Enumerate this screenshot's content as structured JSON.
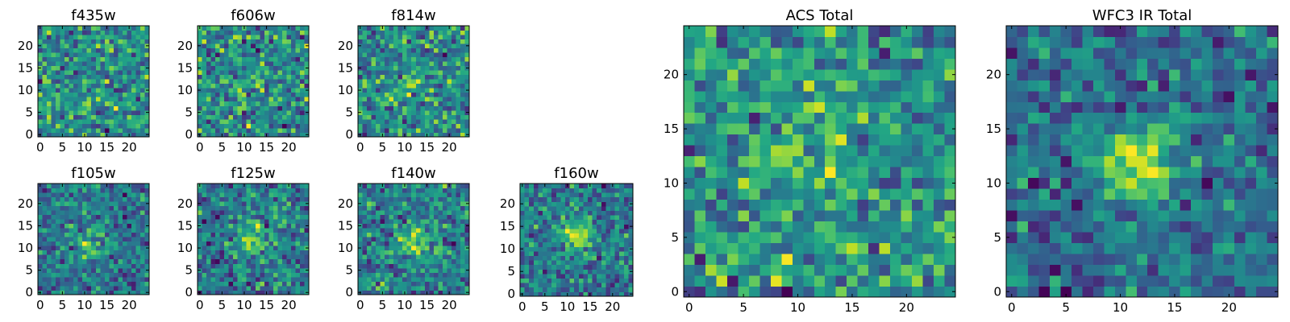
{
  "chart_data": [
    {
      "type": "heatmap",
      "title": "f435w",
      "colormap": "viridis",
      "grid_size": 25,
      "xticks": [
        0,
        5,
        10,
        15,
        20
      ],
      "yticks": [
        0,
        5,
        10,
        15,
        20
      ],
      "xlim": [
        -0.5,
        24.5
      ],
      "ylim": [
        -0.5,
        24.5
      ],
      "source_peak": null,
      "source_amplitude": 0.0,
      "noise_level": 1.0,
      "seed": 11
    },
    {
      "type": "heatmap",
      "title": "f606w",
      "colormap": "viridis",
      "grid_size": 25,
      "xticks": [
        0,
        5,
        10,
        15,
        20
      ],
      "yticks": [
        0,
        5,
        10,
        15,
        20
      ],
      "xlim": [
        -0.5,
        24.5
      ],
      "ylim": [
        -0.5,
        24.5
      ],
      "source_peak": [
        11,
        12
      ],
      "source_amplitude": 0.15,
      "noise_level": 1.0,
      "seed": 23
    },
    {
      "type": "heatmap",
      "title": "f814w",
      "colormap": "viridis",
      "grid_size": 25,
      "xticks": [
        0,
        5,
        10,
        15,
        20
      ],
      "yticks": [
        0,
        5,
        10,
        15,
        20
      ],
      "xlim": [
        -0.5,
        24.5
      ],
      "ylim": [
        -0.5,
        24.5
      ],
      "source_peak": [
        11,
        12
      ],
      "source_amplitude": 0.3,
      "noise_level": 1.0,
      "seed": 37
    },
    {
      "type": "heatmap",
      "title": "f105w",
      "colormap": "viridis",
      "grid_size": 25,
      "xticks": [
        0,
        5,
        10,
        15,
        20
      ],
      "yticks": [
        0,
        5,
        10,
        15,
        20
      ],
      "xlim": [
        -0.5,
        24.5
      ],
      "ylim": [
        -0.5,
        24.5
      ],
      "source_peak": [
        11,
        11
      ],
      "source_amplitude": 0.55,
      "noise_level": 0.7,
      "seed": 41
    },
    {
      "type": "heatmap",
      "title": "f125w",
      "colormap": "viridis",
      "grid_size": 25,
      "xticks": [
        0,
        5,
        10,
        15,
        20
      ],
      "yticks": [
        0,
        5,
        10,
        15,
        20
      ],
      "xlim": [
        -0.5,
        24.5
      ],
      "ylim": [
        -0.5,
        24.5
      ],
      "source_peak": [
        12,
        12
      ],
      "source_amplitude": 0.6,
      "noise_level": 0.6,
      "seed": 53
    },
    {
      "type": "heatmap",
      "title": "f140w",
      "colormap": "viridis",
      "grid_size": 25,
      "xticks": [
        0,
        5,
        10,
        15,
        20
      ],
      "yticks": [
        0,
        5,
        10,
        15,
        20
      ],
      "xlim": [
        -0.5,
        24.5
      ],
      "ylim": [
        -0.5,
        24.5
      ],
      "source_peak": [
        12,
        12
      ],
      "source_amplitude": 0.6,
      "noise_level": 0.6,
      "seed": 67
    },
    {
      "type": "heatmap",
      "title": "f160w",
      "colormap": "viridis",
      "grid_size": 25,
      "xticks": [
        0,
        5,
        10,
        15,
        20
      ],
      "yticks": [
        0,
        5,
        10,
        15,
        20
      ],
      "xlim": [
        -0.5,
        24.5
      ],
      "ylim": [
        -0.5,
        24.5
      ],
      "source_peak": [
        12,
        13
      ],
      "source_amplitude": 0.7,
      "noise_level": 0.6,
      "seed": 79
    },
    {
      "type": "heatmap",
      "title": "ACS Total",
      "colormap": "viridis",
      "grid_size": 25,
      "xticks": [
        0,
        5,
        10,
        15,
        20
      ],
      "yticks": [
        0,
        5,
        10,
        15,
        20
      ],
      "xlim": [
        -0.5,
        24.5
      ],
      "ylim": [
        -0.5,
        24.5
      ],
      "source_peak": [
        11,
        12
      ],
      "source_amplitude": 0.3,
      "noise_level": 0.75,
      "seed": 97
    },
    {
      "type": "heatmap",
      "title": "WFC3 IR Total",
      "colormap": "viridis",
      "grid_size": 25,
      "xticks": [
        0,
        5,
        10,
        15,
        20
      ],
      "yticks": [
        0,
        5,
        10,
        15,
        20
      ],
      "xlim": [
        -0.5,
        24.5
      ],
      "ylim": [
        -0.5,
        24.5
      ],
      "source_peak": [
        12,
        12
      ],
      "source_amplitude": 0.75,
      "noise_level": 0.45,
      "seed": 113
    }
  ]
}
